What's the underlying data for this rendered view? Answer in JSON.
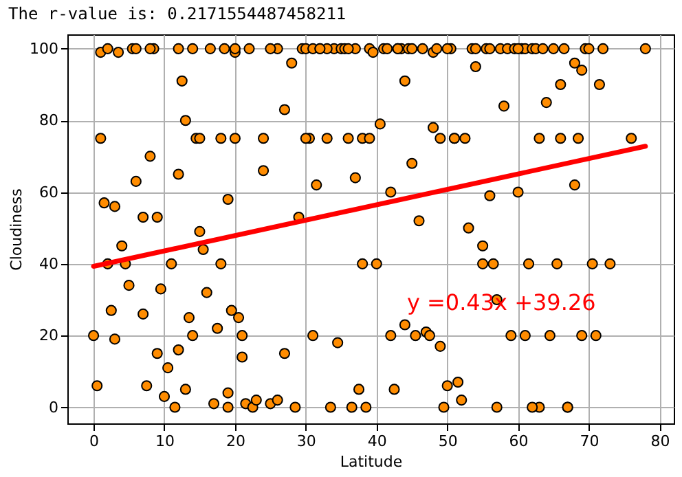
{
  "chart_data": {
    "type": "scatter",
    "title": "The r-value is: 0.2171554487458211",
    "xlabel": "Latitude",
    "ylabel": "Cloudiness",
    "xlim": [
      -3.7,
      82
    ],
    "ylim": [
      -4.5,
      104
    ],
    "xticks": [
      0,
      10,
      20,
      30,
      40,
      50,
      60,
      70,
      80
    ],
    "yticks": [
      0,
      20,
      40,
      60,
      80,
      100
    ],
    "grid": true,
    "annotations": [
      "y =0.43x +39.26"
    ],
    "series": [
      {
        "color": "#ff8c00",
        "marker": "circle",
        "x": [
          0,
          0.5,
          1,
          1.5,
          2,
          2.5,
          3,
          3.5,
          4,
          4.5,
          5,
          5.5,
          6,
          7,
          7.5,
          8,
          8.5,
          9,
          9.5,
          10,
          10.5,
          11,
          11.5,
          12,
          12,
          12.5,
          13,
          13.5,
          14,
          14.5,
          15,
          15.5,
          16,
          16.5,
          17,
          17.5,
          18,
          18.5,
          19,
          19,
          19.5,
          20,
          20,
          20.5,
          21,
          21.5,
          22,
          22.5,
          23,
          24,
          25,
          26,
          27,
          28,
          28.5,
          29,
          29.5,
          30,
          30.5,
          31,
          31.5,
          32,
          33,
          33.5,
          34,
          34.5,
          35,
          35.5,
          36,
          36.5,
          37,
          37.5,
          38,
          38.5,
          39,
          39.5,
          40,
          40.5,
          41,
          41.5,
          42,
          42.5,
          43,
          43.5,
          44,
          44.5,
          45,
          45.5,
          46,
          46.5,
          47,
          47.5,
          48,
          48.5,
          49,
          49.5,
          50,
          50.5,
          51,
          51.5,
          52,
          52.5,
          53,
          53.5,
          54,
          55,
          55.5,
          56,
          56.5,
          57,
          57.5,
          58,
          58.5,
          59,
          59.5,
          60,
          60.5,
          61,
          61.5,
          62,
          62.5,
          63,
          63.5,
          64,
          64.5,
          65,
          65.5,
          66,
          66.5,
          67,
          68,
          68.5,
          69,
          69.5,
          70,
          70.5,
          71,
          71.5,
          72,
          73,
          76,
          78,
          3,
          6,
          9,
          12,
          15,
          18,
          21,
          24,
          27,
          30,
          33,
          36,
          39,
          42,
          45,
          48,
          51,
          54,
          57,
          60,
          63,
          66,
          69,
          2,
          8,
          14,
          20,
          26,
          32,
          38,
          44,
          50,
          56,
          62,
          68,
          1,
          7,
          13,
          19,
          25,
          31,
          37,
          43,
          49,
          55,
          61,
          67
        ],
        "values": [
          20,
          6,
          99,
          57,
          40,
          27,
          19,
          99,
          45,
          40,
          34,
          100,
          100,
          26,
          6,
          70,
          100,
          53,
          33,
          3,
          11,
          40,
          0,
          100,
          65,
          91,
          5,
          25,
          100,
          75,
          49,
          44,
          32,
          100,
          1,
          22,
          75,
          100,
          4,
          0,
          27,
          75,
          99,
          25,
          14,
          1,
          100,
          0,
          2,
          66,
          1,
          2,
          15,
          96,
          0,
          53,
          100,
          100,
          75,
          100,
          62,
          100,
          75,
          0,
          100,
          18,
          100,
          100,
          75,
          0,
          100,
          5,
          75,
          0,
          100,
          99,
          40,
          79,
          100,
          100,
          20,
          5,
          100,
          100,
          23,
          100,
          68,
          20,
          52,
          100,
          21,
          20,
          99,
          100,
          17,
          0,
          6,
          100,
          75,
          7,
          2,
          75,
          50,
          100,
          100,
          45,
          100,
          100,
          40,
          30,
          100,
          84,
          100,
          20,
          100,
          60,
          100,
          100,
          40,
          100,
          100,
          75,
          100,
          85,
          20,
          100,
          40,
          90,
          100,
          0,
          96,
          75,
          20,
          100,
          100,
          40,
          20,
          90,
          100,
          40,
          75,
          100,
          56,
          63,
          15,
          16,
          75,
          40,
          20,
          75,
          83,
          75,
          100,
          100,
          75,
          60,
          100,
          78,
          75,
          95,
          0,
          100,
          0,
          75,
          94,
          100,
          100,
          20,
          100,
          100,
          100,
          40,
          91,
          100,
          59,
          0,
          62,
          75,
          53,
          80,
          58,
          100,
          20,
          64,
          100,
          75,
          40,
          20,
          0
        ]
      },
      {
        "type": "line",
        "color": "#ff0000",
        "marker": "none",
        "x": [
          0,
          78
        ],
        "values": [
          39.3,
          72.8
        ]
      }
    ]
  }
}
